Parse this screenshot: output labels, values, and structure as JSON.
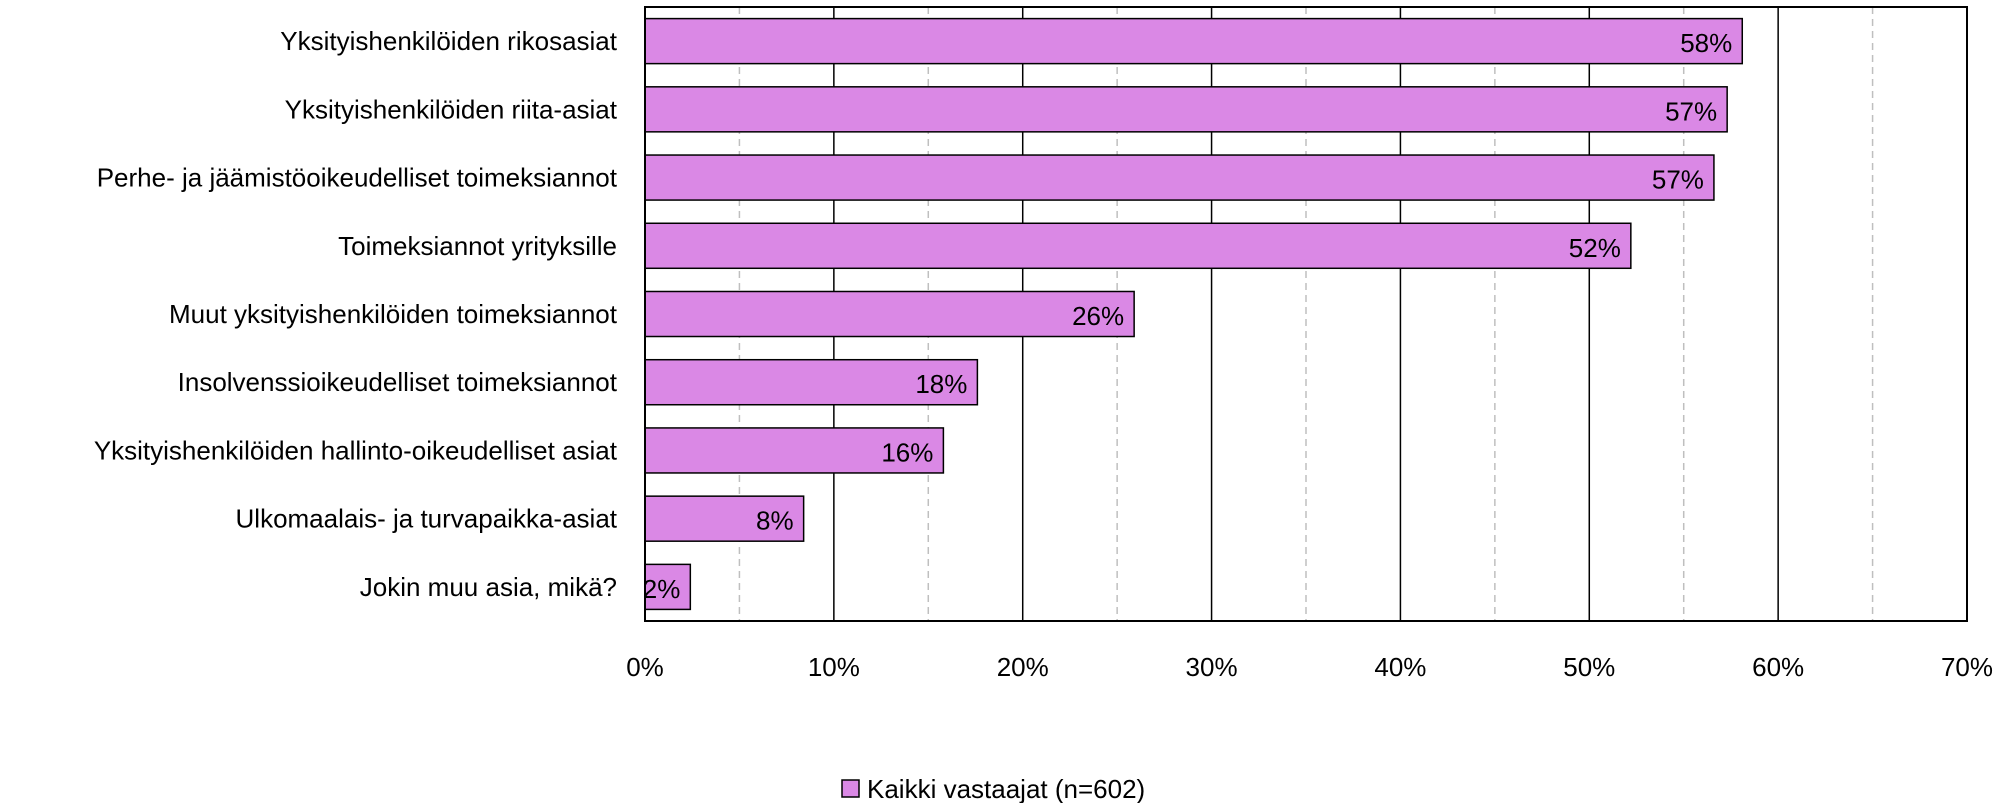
{
  "chart_data": {
    "type": "bar",
    "orientation": "horizontal",
    "categories": [
      "Yksityishenkilöiden rikosasiat",
      "Yksityishenkilöiden riita-asiat",
      "Perhe- ja jäämistöoikeudelliset toimeksiannot",
      "Toimeksiannot yrityksille",
      "Muut yksityishenkilöiden toimeksiannot",
      "Insolvenssioikeudelliset toimeksiannot",
      "Yksityishenkilöiden hallinto-oikeudelliset asiat",
      "Ulkomaalais- ja turvapaikka-asiat",
      "Jokin muu asia, mikä?"
    ],
    "series": [
      {
        "name": "Kaikki vastaajat (n=602)",
        "values": [
          58.1,
          57.3,
          56.6,
          52.2,
          25.9,
          17.6,
          15.8,
          8.4,
          2.4
        ],
        "labels": [
          "58%",
          "57%",
          "57%",
          "52%",
          "26%",
          "18%",
          "16%",
          "8%",
          "2%"
        ],
        "color": "#da88e5"
      }
    ],
    "xlim": [
      0,
      70
    ],
    "xticks": [
      0,
      10,
      20,
      30,
      40,
      50,
      60,
      70
    ],
    "xtick_labels": [
      "0%",
      "10%",
      "20%",
      "30%",
      "40%",
      "50%",
      "60%",
      "70%"
    ],
    "major_gridline_color": "#000000",
    "minor_gridline_color": "#bfbfbf",
    "minor_gridlines_dashed": true,
    "grid": true,
    "legend_position": "bottom",
    "title": "",
    "xlabel": "",
    "ylabel": ""
  }
}
